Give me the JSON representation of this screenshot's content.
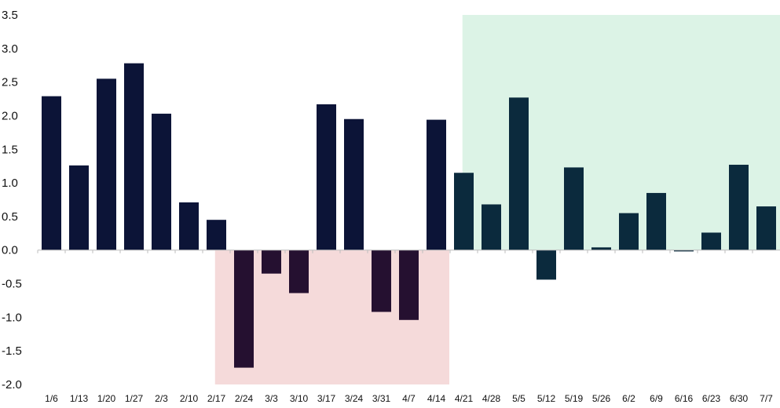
{
  "chart_data": {
    "type": "bar",
    "title": "",
    "xlabel": "",
    "ylabel": "",
    "ylim": [
      -2.0,
      3.5
    ],
    "yticks": [
      "3.5",
      "3.0",
      "2.5",
      "2.0",
      "1.5",
      "1.0",
      "0.5",
      "0.0",
      "-0.5",
      "-1.0",
      "-1.5",
      "-2.0"
    ],
    "ytick_values": [
      3.5,
      3.0,
      2.5,
      2.0,
      1.5,
      1.0,
      0.5,
      0.0,
      -0.5,
      -1.0,
      -1.5,
      -2.0
    ],
    "grid": false,
    "categories": [
      "1/6",
      "1/13",
      "1/20",
      "1/27",
      "2/3",
      "2/10",
      "2/17",
      "2/24",
      "3/3",
      "3/10",
      "3/17",
      "3/24",
      "3/31",
      "4/7",
      "4/14",
      "4/21",
      "4/28",
      "5/5",
      "5/12",
      "5/19",
      "5/26",
      "6/2",
      "6/9",
      "6/16",
      "6/23",
      "6/30",
      "7/7"
    ],
    "values": [
      2.29,
      1.26,
      2.55,
      2.78,
      2.03,
      0.71,
      0.45,
      -1.75,
      -0.35,
      -0.64,
      2.17,
      1.95,
      -0.92,
      -1.04,
      1.94,
      1.15,
      0.68,
      2.27,
      -0.44,
      1.23,
      0.04,
      0.55,
      0.85,
      -0.02,
      0.26,
      1.27,
      0.65
    ],
    "shaded_regions": [
      {
        "from_category": "2/17",
        "to_category": "4/14",
        "y_from": -2.0,
        "y_to": 0.0,
        "color": "#f5dada"
      },
      {
        "from_category": "4/21",
        "to_category": "7/7",
        "y_from": 0.0,
        "y_to": 3.5,
        "color": "#dcf3e6"
      }
    ],
    "colors": {
      "positive_early": "#0c1437",
      "negative": "#251030",
      "late_period": "#0b2a3d",
      "zero_line": "#bdbdbd"
    }
  }
}
